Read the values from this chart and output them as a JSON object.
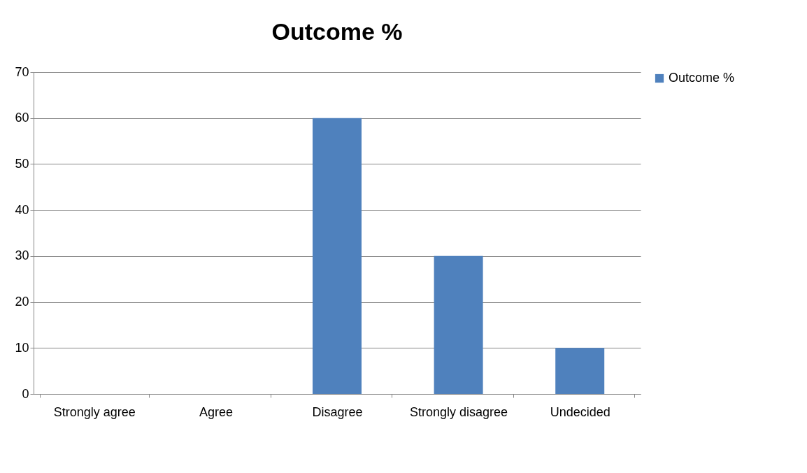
{
  "chart_data": {
    "type": "bar",
    "title": "Outcome %",
    "categories": [
      "Strongly agree",
      "Agree",
      "Disagree",
      "Strongly disagree",
      "Undecided"
    ],
    "series": [
      {
        "name": "Outcome %",
        "color": "#4f81bd",
        "values": [
          0,
          0,
          60,
          30,
          10
        ]
      }
    ],
    "ylim": [
      0,
      70
    ],
    "yticks": [
      0,
      10,
      20,
      30,
      40,
      50,
      60,
      70
    ],
    "grid": "y",
    "legend": "right"
  }
}
